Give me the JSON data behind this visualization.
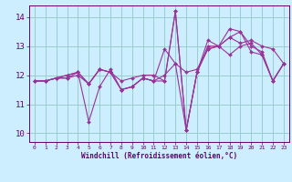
{
  "bg_color": "#cceeff",
  "line_color": "#993399",
  "grid_color": "#99cccc",
  "xlabel": "Windchill (Refroidissement éolien,°C)",
  "xlabel_color": "#660066",
  "tick_color": "#660066",
  "spine_color": "#660066",
  "ylim": [
    9.7,
    14.4
  ],
  "xlim": [
    -0.5,
    23.5
  ],
  "yticks": [
    10,
    11,
    12,
    13,
    14
  ],
  "xticks": [
    0,
    1,
    2,
    3,
    4,
    5,
    6,
    7,
    8,
    9,
    10,
    11,
    12,
    13,
    14,
    15,
    16,
    17,
    18,
    19,
    20,
    21,
    22,
    23
  ],
  "series": [
    [
      11.8,
      11.8,
      11.9,
      11.9,
      12.0,
      11.7,
      12.2,
      12.1,
      11.8,
      11.9,
      12.0,
      12.0,
      11.8,
      14.2,
      10.1,
      12.1,
      12.9,
      13.0,
      13.3,
      13.1,
      13.2,
      13.0,
      12.9,
      12.4
    ],
    [
      11.8,
      11.8,
      11.9,
      12.0,
      12.1,
      10.4,
      11.6,
      12.2,
      11.5,
      11.6,
      11.9,
      11.8,
      12.9,
      12.4,
      10.1,
      12.1,
      13.2,
      13.0,
      13.6,
      13.5,
      12.8,
      12.7,
      11.8,
      12.4
    ],
    [
      11.8,
      11.8,
      11.9,
      12.0,
      12.1,
      11.7,
      12.2,
      12.1,
      11.5,
      11.6,
      11.9,
      11.8,
      12.0,
      12.4,
      12.1,
      12.2,
      12.9,
      13.0,
      12.7,
      13.0,
      13.1,
      12.7,
      11.8,
      12.4
    ],
    [
      11.8,
      11.8,
      11.9,
      11.9,
      12.1,
      11.7,
      12.2,
      12.1,
      11.5,
      11.6,
      11.9,
      11.8,
      11.8,
      14.2,
      10.1,
      12.1,
      13.0,
      13.0,
      13.3,
      13.5,
      13.0,
      12.8,
      11.8,
      12.4
    ]
  ],
  "figsize": [
    3.2,
    2.0
  ],
  "dpi": 100
}
